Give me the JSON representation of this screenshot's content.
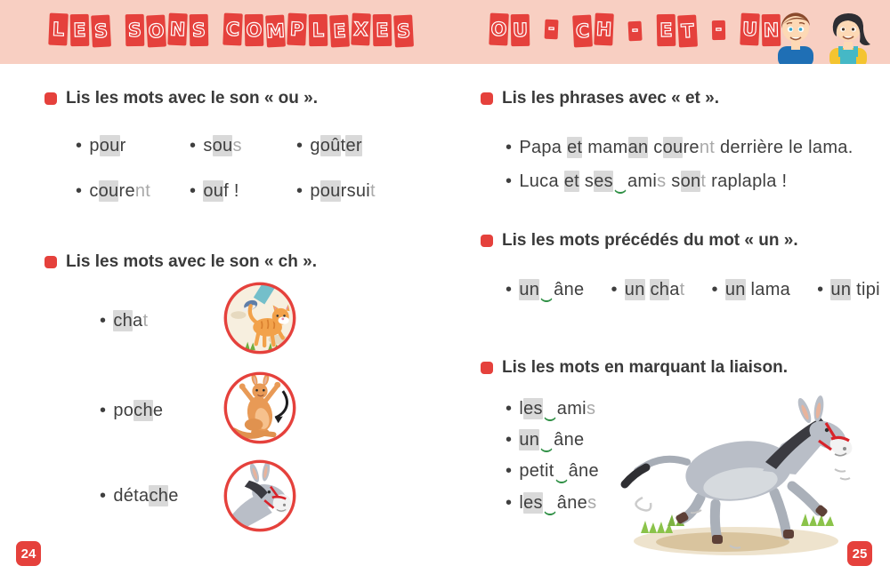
{
  "header": {
    "band_color": "#f8cfc2",
    "left_title": "LES SONS COMPLEXES",
    "right_title": "OU - CH - ET - UN",
    "illustration": "two-children-icon"
  },
  "colors": {
    "tile_red": "#e5413c",
    "heading_text": "#3a3a3a",
    "body_text": "#3f3f3f",
    "silent_letter_gray": "#a9a9a9",
    "highlight_gray": "#d9d9d9",
    "liaison_green": "#2e8f44",
    "page_badge_red": "#e5413c"
  },
  "left_page": {
    "page_number": "24",
    "section_ou": {
      "heading": "Lis les mots avec le son « ou ».",
      "items": [
        {
          "segments": [
            {
              "t": "p"
            },
            {
              "t": "ou",
              "box": true
            },
            {
              "t": "r"
            }
          ]
        },
        {
          "segments": [
            {
              "t": "s"
            },
            {
              "t": "ou",
              "box": true
            },
            {
              "t": "s",
              "silent": true
            }
          ]
        },
        {
          "segments": [
            {
              "t": "g"
            },
            {
              "t": "oû",
              "box": true
            },
            {
              "t": "t"
            },
            {
              "t": "er",
              "box": true
            }
          ]
        },
        {
          "segments": [
            {
              "t": "c"
            },
            {
              "t": "ou",
              "box": true
            },
            {
              "t": "re"
            },
            {
              "t": "nt",
              "silent": true
            }
          ]
        },
        {
          "segments": [
            {
              "t": "ou",
              "box": true
            },
            {
              "t": "f !"
            }
          ]
        },
        {
          "segments": [
            {
              "t": "p"
            },
            {
              "t": "ou",
              "box": true
            },
            {
              "t": "rsui"
            },
            {
              "t": "t",
              "silent": true
            }
          ]
        }
      ]
    },
    "section_ch": {
      "heading": "Lis les mots avec le son « ch ».",
      "items": [
        {
          "image": "cat-walking",
          "segments": [
            {
              "t": "ch",
              "box": true
            },
            {
              "t": "a"
            },
            {
              "t": "t",
              "silent": true
            }
          ]
        },
        {
          "image": "kangaroo-pouch-arrow",
          "segments": [
            {
              "t": "po"
            },
            {
              "t": "ch",
              "box": true
            },
            {
              "t": "e"
            }
          ]
        },
        {
          "image": "donkey-head",
          "segments": [
            {
              "t": "déta"
            },
            {
              "t": "ch",
              "box": true
            },
            {
              "t": "e"
            }
          ]
        }
      ]
    }
  },
  "right_page": {
    "page_number": "25",
    "section_et": {
      "heading": "Lis les phrases avec « et ».",
      "sentences": [
        {
          "segments": [
            {
              "t": "Papa "
            },
            {
              "t": "et",
              "box": true
            },
            {
              "t": " mam"
            },
            {
              "t": "an",
              "box": true
            },
            {
              "t": " c"
            },
            {
              "t": "ou",
              "box": true
            },
            {
              "t": "re"
            },
            {
              "t": "nt",
              "silent": true
            },
            {
              "t": " derrière le lama."
            }
          ]
        },
        {
          "segments": [
            {
              "t": "Luca "
            },
            {
              "t": "et",
              "box": true
            },
            {
              "t": " s"
            },
            {
              "t": "es",
              "box": true
            },
            {
              "arc": true
            },
            {
              "t": "ami"
            },
            {
              "t": "s",
              "silent": true
            },
            {
              "t": " s"
            },
            {
              "t": "on",
              "box": true
            },
            {
              "t": "t",
              "silent": true
            },
            {
              "t": " raplapla !"
            }
          ]
        }
      ]
    },
    "section_un": {
      "heading": "Lis les mots précédés du mot « un ».",
      "items": [
        {
          "segments": [
            {
              "t": "un",
              "box": true
            },
            {
              "arc": true
            },
            {
              "t": "âne"
            }
          ]
        },
        {
          "segments": [
            {
              "t": "un",
              "box": true
            },
            {
              "t": " "
            },
            {
              "t": "ch",
              "box": true
            },
            {
              "t": "a"
            },
            {
              "t": "t",
              "silent": true
            }
          ]
        },
        {
          "segments": [
            {
              "t": "un",
              "box": true
            },
            {
              "t": " lama"
            }
          ]
        },
        {
          "segments": [
            {
              "t": "un",
              "box": true
            },
            {
              "t": " tipi"
            }
          ]
        }
      ]
    },
    "section_liaison": {
      "heading": "Lis les mots en marquant la liaison.",
      "image": "donkey-running",
      "items": [
        {
          "segments": [
            {
              "t": "l"
            },
            {
              "t": "es",
              "box": true
            },
            {
              "arc": true
            },
            {
              "t": "ami"
            },
            {
              "t": "s",
              "silent": true
            }
          ]
        },
        {
          "segments": [
            {
              "t": "un",
              "box": true
            },
            {
              "arc": true
            },
            {
              "t": "âne"
            }
          ]
        },
        {
          "segments": [
            {
              "t": "petit"
            },
            {
              "arc": true
            },
            {
              "t": "âne"
            }
          ]
        },
        {
          "segments": [
            {
              "t": "l"
            },
            {
              "t": "es",
              "box": true
            },
            {
              "arc": true
            },
            {
              "t": "âne"
            },
            {
              "t": "s",
              "silent": true
            }
          ]
        }
      ]
    }
  }
}
